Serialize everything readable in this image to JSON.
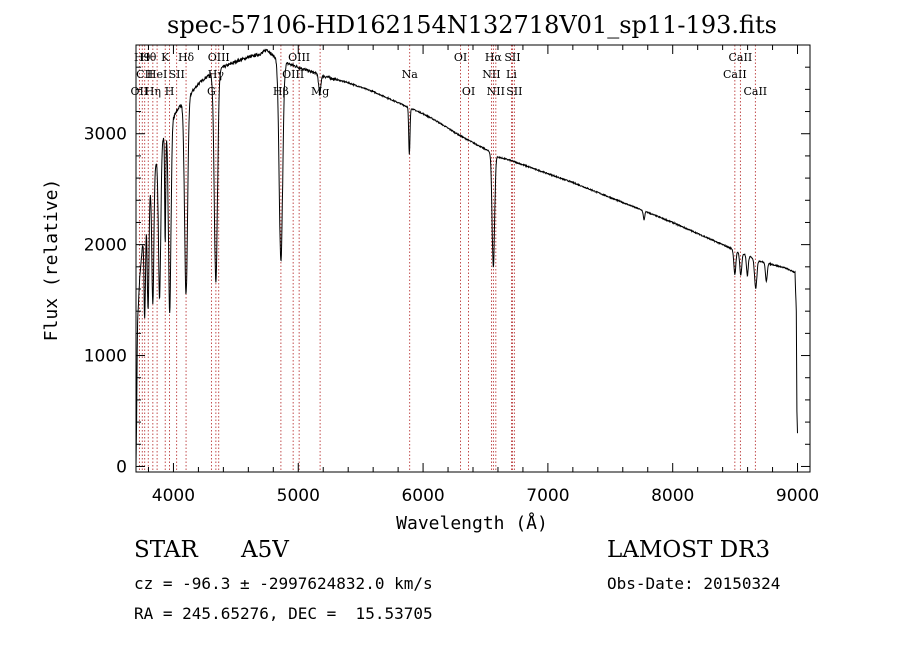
{
  "chart_data": {
    "type": "line",
    "title": "spec-57106-HD162154N132718V01_sp11-193.fits",
    "xlabel": "Wavelength (Å)",
    "ylabel": "Flux (relative)",
    "xlim": [
      3700,
      9100
    ],
    "ylim": [
      -50,
      3800
    ],
    "xticks": [
      4000,
      5000,
      6000,
      7000,
      8000,
      9000
    ],
    "yticks": [
      0,
      1000,
      2000,
      3000
    ],
    "grid": false,
    "continuum": [
      [
        3700,
        0
      ],
      [
        3705,
        400
      ],
      [
        3712,
        1300
      ],
      [
        3730,
        1700
      ],
      [
        3760,
        2100
      ],
      [
        3800,
        2450
      ],
      [
        3850,
        2700
      ],
      [
        3900,
        2900
      ],
      [
        3950,
        3050
      ],
      [
        4000,
        3150
      ],
      [
        4050,
        3250
      ],
      [
        4100,
        3300
      ],
      [
        4150,
        3380
      ],
      [
        4200,
        3450
      ],
      [
        4250,
        3500
      ],
      [
        4300,
        3540
      ],
      [
        4350,
        3580
      ],
      [
        4400,
        3600
      ],
      [
        4500,
        3650
      ],
      [
        4600,
        3690
      ],
      [
        4700,
        3720
      ],
      [
        4750,
        3760
      ],
      [
        4800,
        3700
      ],
      [
        4900,
        3640
      ],
      [
        5000,
        3600
      ],
      [
        5100,
        3560
      ],
      [
        5200,
        3520
      ],
      [
        5300,
        3490
      ],
      [
        5400,
        3460
      ],
      [
        5500,
        3420
      ],
      [
        5600,
        3380
      ],
      [
        5700,
        3330
      ],
      [
        5800,
        3280
      ],
      [
        5900,
        3230
      ],
      [
        6000,
        3180
      ],
      [
        6100,
        3120
      ],
      [
        6200,
        3050
      ],
      [
        6300,
        2980
      ],
      [
        6400,
        2920
      ],
      [
        6500,
        2860
      ],
      [
        6560,
        2820
      ],
      [
        6600,
        2790
      ],
      [
        6700,
        2760
      ],
      [
        6800,
        2720
      ],
      [
        6900,
        2680
      ],
      [
        7000,
        2640
      ],
      [
        7200,
        2560
      ],
      [
        7400,
        2470
      ],
      [
        7600,
        2380
      ],
      [
        7800,
        2290
      ],
      [
        8000,
        2200
      ],
      [
        8200,
        2100
      ],
      [
        8400,
        2000
      ],
      [
        8600,
        1900
      ],
      [
        8700,
        1850
      ],
      [
        8800,
        1820
      ],
      [
        8900,
        1790
      ],
      [
        8980,
        1750
      ],
      [
        8990,
        1400
      ],
      [
        8995,
        500
      ],
      [
        9000,
        300
      ]
    ],
    "absorption": [
      {
        "center": 3770,
        "depth": 850,
        "width": 6
      },
      {
        "center": 3797,
        "depth": 1000,
        "width": 7
      },
      {
        "center": 3835,
        "depth": 1150,
        "width": 8
      },
      {
        "center": 3889,
        "depth": 1350,
        "width": 9
      },
      {
        "center": 3934,
        "depth": 1000,
        "width": 4
      },
      {
        "center": 3970,
        "depth": 1700,
        "width": 10
      },
      {
        "center": 4101,
        "depth": 1750,
        "width": 12
      },
      {
        "center": 4340,
        "depth": 1900,
        "width": 13
      },
      {
        "center": 4861,
        "depth": 1820,
        "width": 14
      },
      {
        "center": 5172,
        "depth": 180,
        "width": 8
      },
      {
        "center": 5890,
        "depth": 420,
        "width": 5
      },
      {
        "center": 6563,
        "depth": 1020,
        "width": 10
      },
      {
        "center": 7770,
        "depth": 80,
        "width": 6
      },
      {
        "center": 8498,
        "depth": 220,
        "width": 8
      },
      {
        "center": 8545,
        "depth": 200,
        "width": 8
      },
      {
        "center": 8598,
        "depth": 180,
        "width": 7
      },
      {
        "center": 8665,
        "depth": 260,
        "width": 9
      },
      {
        "center": 8750,
        "depth": 170,
        "width": 7
      }
    ],
    "line_markers": [
      {
        "wavelength": 3727,
        "label": "OII",
        "row": 2
      },
      {
        "wavelength": 3750,
        "label": "H9",
        "row": 0
      },
      {
        "wavelength": 3770,
        "label": "CII",
        "row": 1
      },
      {
        "wavelength": 3798,
        "label": "Hθ",
        "row": 0
      },
      {
        "wavelength": 3835,
        "label": "Hη",
        "row": 2
      },
      {
        "wavelength": 3869,
        "label": "HeI",
        "row": 1
      },
      {
        "wavelength": 3934,
        "label": "K",
        "row": 0
      },
      {
        "wavelength": 3969,
        "label": "H",
        "row": 2
      },
      {
        "wavelength": 4026,
        "label": "SII",
        "row": 1
      },
      {
        "wavelength": 4101,
        "label": "Hδ",
        "row": 0
      },
      {
        "wavelength": 4304,
        "label": "G",
        "row": 2
      },
      {
        "wavelength": 4340,
        "label": "Hγ",
        "row": 1
      },
      {
        "wavelength": 4363,
        "label": "OIII",
        "row": 0
      },
      {
        "wavelength": 4861,
        "label": "Hβ",
        "row": 2
      },
      {
        "wavelength": 4959,
        "label": "OIII",
        "row": 1
      },
      {
        "wavelength": 5007,
        "label": "OIII",
        "row": 0
      },
      {
        "wavelength": 5175,
        "label": "Mg",
        "row": 2
      },
      {
        "wavelength": 5893,
        "label": "Na",
        "row": 1
      },
      {
        "wavelength": 6300,
        "label": "OI",
        "row": 0
      },
      {
        "wavelength": 6364,
        "label": "OI",
        "row": 2
      },
      {
        "wavelength": 6548,
        "label": "NII",
        "row": 1
      },
      {
        "wavelength": 6563,
        "label": "Hα",
        "row": 0
      },
      {
        "wavelength": 6583,
        "label": "NII",
        "row": 2
      },
      {
        "wavelength": 6708,
        "label": "Li",
        "row": 1
      },
      {
        "wavelength": 6716,
        "label": "SII",
        "row": 0
      },
      {
        "wavelength": 6731,
        "label": "SII",
        "row": 2
      },
      {
        "wavelength": 8498,
        "label": "CaII",
        "row": 1
      },
      {
        "wavelength": 8542,
        "label": "CaII",
        "row": 0
      },
      {
        "wavelength": 8662,
        "label": "CaII",
        "row": 2
      }
    ]
  },
  "info": {
    "object_type": "STAR",
    "subclass": "A5V",
    "survey": "LAMOST DR3",
    "redshift_line": "cz = -96.3 ± -2997624832.0 km/s",
    "obs_date": "Obs-Date: 20150324",
    "coords": "RA = 245.65276, DEC =  15.53705"
  }
}
